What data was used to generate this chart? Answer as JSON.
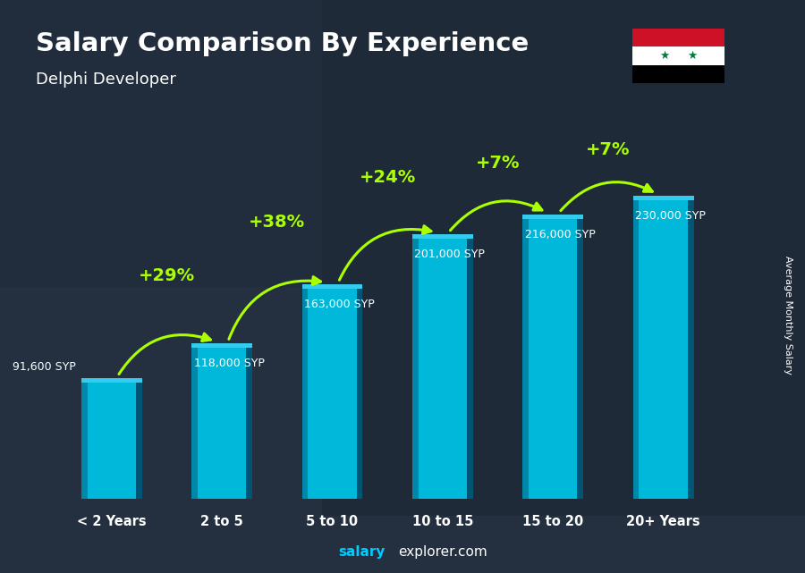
{
  "title": "Salary Comparison By Experience",
  "subtitle": "Delphi Developer",
  "categories": [
    "< 2 Years",
    "2 to 5",
    "5 to 10",
    "10 to 15",
    "15 to 20",
    "20+ Years"
  ],
  "values": [
    91600,
    118000,
    163000,
    201000,
    216000,
    230000
  ],
  "value_labels": [
    "91,600 SYP",
    "118,000 SYP",
    "163,000 SYP",
    "201,000 SYP",
    "216,000 SYP",
    "230,000 SYP"
  ],
  "pct_changes": [
    null,
    "+29%",
    "+38%",
    "+24%",
    "+7%",
    "+7%"
  ],
  "bar_color_main": "#00b8d9",
  "bar_color_left": "#0088aa",
  "bar_color_right": "#005577",
  "bar_color_top": "#33ccee",
  "bg_color": "#2a3a4a",
  "title_color": "#ffffff",
  "subtitle_color": "#ffffff",
  "label_color": "#ffffff",
  "pct_color": "#aaff00",
  "watermark_salary_color": "#00ccff",
  "watermark_explorer_color": "#ffffff",
  "watermark": "salaryexplorer.com",
  "side_label": "Average Monthly Salary",
  "ylim": [
    0,
    270000
  ],
  "bar_width": 0.55,
  "flag_colors": [
    "#ce1126",
    "#ffffff",
    "#000000"
  ],
  "flag_star_color": "#007a3d"
}
